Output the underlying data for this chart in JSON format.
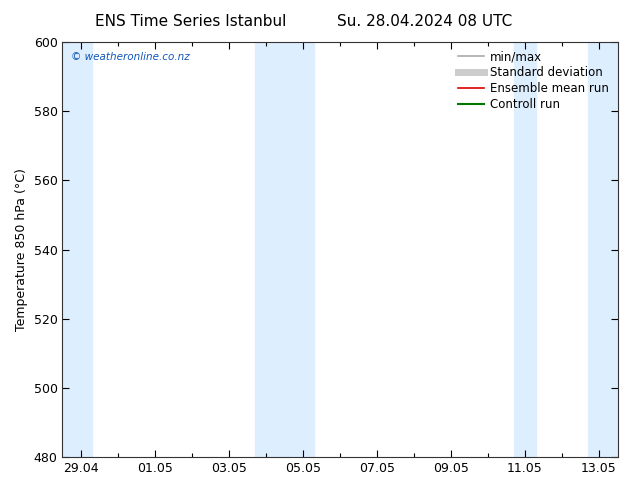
{
  "title_left": "ENS Time Series Istanbul",
  "title_right": "Su. 28.04.2024 08 UTC",
  "ylabel": "Temperature 850 hPa (°C)",
  "ylim": [
    480,
    600
  ],
  "yticks": [
    480,
    500,
    520,
    540,
    560,
    580,
    600
  ],
  "bg_color": "#ffffff",
  "plot_bg_color": "#ffffff",
  "shade_color": "#ddeeff",
  "watermark": "© weatheronline.co.nz",
  "legend_items": [
    {
      "label": "min/max",
      "color": "#aaaaaa",
      "lw": 1.2
    },
    {
      "label": "Standard deviation",
      "color": "#cccccc",
      "lw": 5
    },
    {
      "label": "Ensemble mean run",
      "color": "#dd0000",
      "lw": 1.2
    },
    {
      "label": "Controll run",
      "color": "#007700",
      "lw": 1.5
    }
  ],
  "x_tick_labels": [
    "29.04",
    "01.05",
    "03.05",
    "05.05",
    "07.05",
    "09.05",
    "11.05",
    "13.05"
  ],
  "x_tick_positions": [
    0,
    2,
    4,
    6,
    8,
    10,
    12,
    14
  ],
  "xlim": [
    -0.5,
    14.5
  ],
  "shade_bands": [
    {
      "start": -0.5,
      "end": 0.3
    },
    {
      "start": 4.7,
      "end": 6.3
    },
    {
      "start": 11.7,
      "end": 12.3
    },
    {
      "start": 13.7,
      "end": 14.5
    }
  ],
  "title_fontsize": 11,
  "tick_fontsize": 9,
  "label_fontsize": 9,
  "legend_fontsize": 8.5
}
